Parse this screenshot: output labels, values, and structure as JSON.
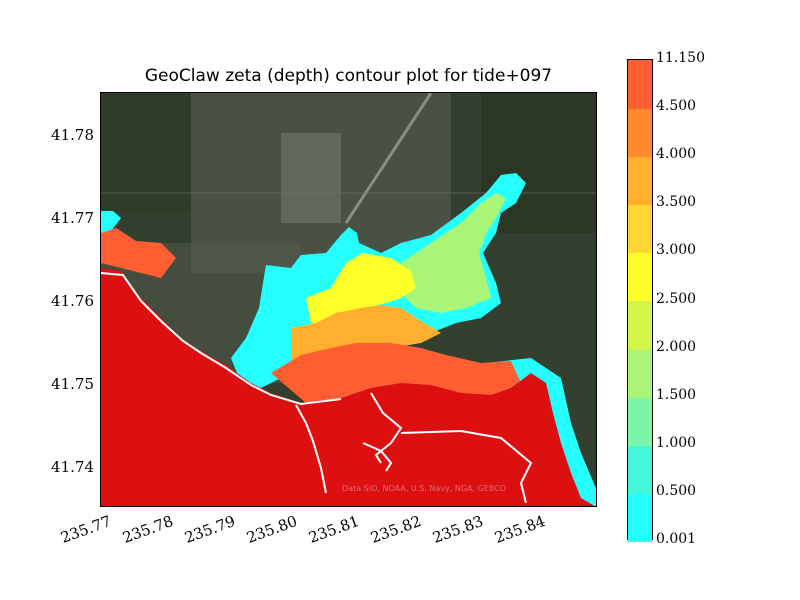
{
  "chart_data": {
    "type": "heatmap",
    "title": "GeoClaw zeta (depth) contour plot for tide+097",
    "xlim": [
      235.7695,
      235.8495
    ],
    "ylim": [
      41.7352,
      41.7852
    ],
    "x_ticks": [
      "235.77",
      "235.78",
      "235.79",
      "235.80",
      "235.81",
      "235.82",
      "235.83",
      "235.84"
    ],
    "x_tick_values": [
      235.77,
      235.78,
      235.79,
      235.8,
      235.81,
      235.82,
      235.83,
      235.84
    ],
    "y_ticks": [
      "41.78",
      "41.77",
      "41.76",
      "41.75",
      "41.74"
    ],
    "y_tick_values": [
      41.78,
      41.77,
      41.76,
      41.75,
      41.74
    ],
    "colorbar": {
      "levels": [
        "0.001",
        "0.500",
        "1.000",
        "1.500",
        "2.000",
        "2.500",
        "3.000",
        "3.500",
        "4.000",
        "4.500",
        "11.150"
      ],
      "level_values": [
        0.001,
        0.5,
        1.0,
        1.5,
        2.0,
        2.5,
        3.0,
        3.5,
        4.0,
        4.5,
        11.15
      ],
      "colors": [
        "#26ffff",
        "#43f6d8",
        "#7cf5a4",
        "#a9f577",
        "#d6f54a",
        "#ffff2a",
        "#ffd634",
        "#ffae2e",
        "#ff8a2e",
        "#ff5e33",
        "#ff3333"
      ]
    },
    "attribution": "Data SIO, NOAA, U.S. Navy, NGA, GEBCO"
  }
}
